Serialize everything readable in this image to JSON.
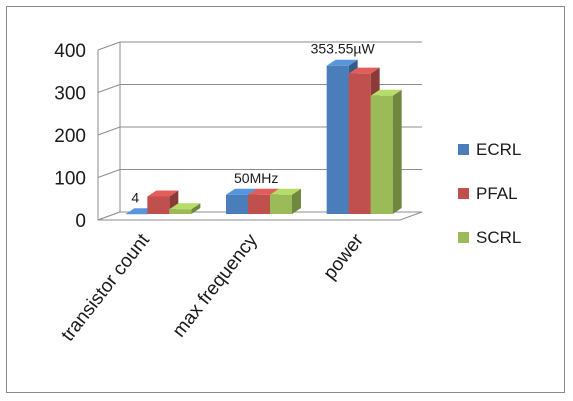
{
  "chart_data": {
    "type": "bar",
    "style": "3d-clustered-column",
    "categories": [
      "transistor count",
      "max frequency",
      "power"
    ],
    "series": [
      {
        "name": "ECRL",
        "values": [
          4,
          50,
          353.55
        ],
        "color": "#4a7ebb"
      },
      {
        "name": "PFAL",
        "values": [
          46,
          50,
          335
        ],
        "color": "#c0504d"
      },
      {
        "name": "SCRL",
        "values": [
          16,
          50,
          283
        ],
        "color": "#9bbb59"
      }
    ],
    "ylim": [
      0,
      400
    ],
    "yticks": [
      0,
      100,
      200,
      300,
      400
    ],
    "grid": true,
    "legend_position": "right",
    "data_labels": [
      {
        "category_index": 0,
        "series_index": 0,
        "text": "4"
      },
      {
        "category_index": 1,
        "series_index": 0,
        "text": "50MHz"
      },
      {
        "category_index": 2,
        "series_index": 0,
        "text": "353.55µW"
      }
    ]
  }
}
